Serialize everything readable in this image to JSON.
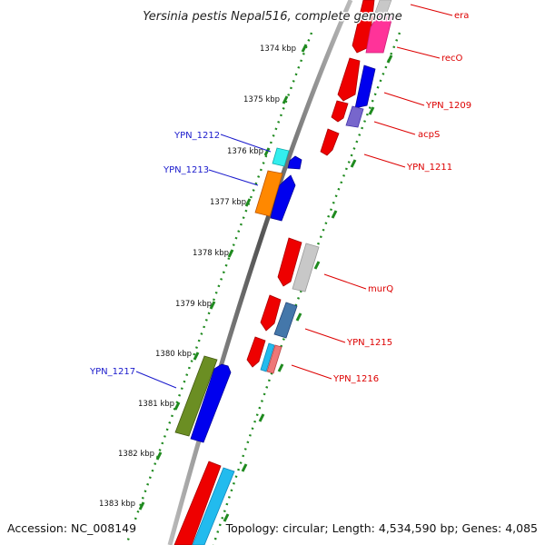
{
  "title": "Yersinia pestis Nepal516, complete genome",
  "footer": {
    "accession": "Accession: NC_008149",
    "topology": "Topology: circular; Length: 4,534,590 bp; Genes: 4,085"
  },
  "ticks": [
    "1374 kbp",
    "1375 kbp",
    "1376 kbp",
    "1377 kbp",
    "1378 kbp",
    "1379 kbp",
    "1380 kbp",
    "1381 kbp",
    "1382 kbp",
    "1383 kbp"
  ],
  "gene_labels_forward": [
    "era",
    "recO",
    "YPN_1209",
    "acpS",
    "YPN_1211",
    "murQ",
    "YPN_1215",
    "YPN_1216"
  ],
  "gene_labels_reverse": [
    "YPN_1212",
    "YPN_1213",
    "YPN_1217"
  ],
  "colors": {
    "label_forward": "#dd0000",
    "label_reverse": "#1a1acc",
    "backbone": "#777777",
    "tick_track": "#1f8a1f"
  }
}
